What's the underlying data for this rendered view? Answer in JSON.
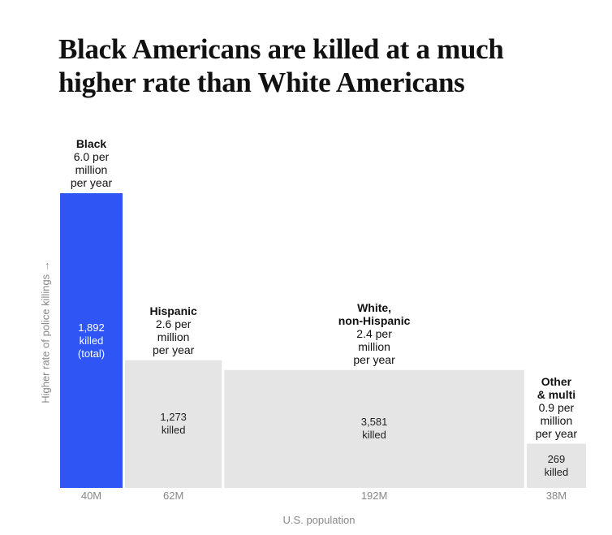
{
  "title": "Black Americans are killed at a much higher rate than White Americans",
  "colors": {
    "highlight": "#2f55f5",
    "bar": "#e5e5e5",
    "axis_text": "#888888"
  },
  "chart_data": {
    "type": "bar",
    "subtype": "variable-width (mosaic)",
    "title": "Black Americans are killed at a much higher rate than White Americans",
    "xlabel": "U.S. population",
    "ylabel": "Higher rate of police killings →",
    "ylim": [
      0,
      6.0
    ],
    "grid": false,
    "groups": [
      {
        "name": "Black",
        "rate": 6.0,
        "rate_label": "6.0 per\nmillion\nper year",
        "killed": 1892,
        "killed_label": "1,892\nkilled\n(total)",
        "population_millions": 40,
        "population_label": "40M",
        "highlight": true
      },
      {
        "name": "Hispanic",
        "rate": 2.6,
        "rate_label": "2.6 per\nmillion\nper year",
        "killed": 1273,
        "killed_label": "1,273\nkilled",
        "population_millions": 62,
        "population_label": "62M",
        "highlight": false
      },
      {
        "name": "White,\nnon-Hispanic",
        "rate": 2.4,
        "rate_label": "2.4 per\nmillion\nper year",
        "killed": 3581,
        "killed_label": "3,581\nkilled",
        "population_millions": 192,
        "population_label": "192M",
        "highlight": false
      },
      {
        "name": "Other\n& multi",
        "rate": 0.9,
        "rate_label": "0.9 per\nmillion\nper year",
        "killed": 269,
        "killed_label": "269\nkilled",
        "population_millions": 38,
        "population_label": "38M",
        "highlight": false
      }
    ]
  }
}
